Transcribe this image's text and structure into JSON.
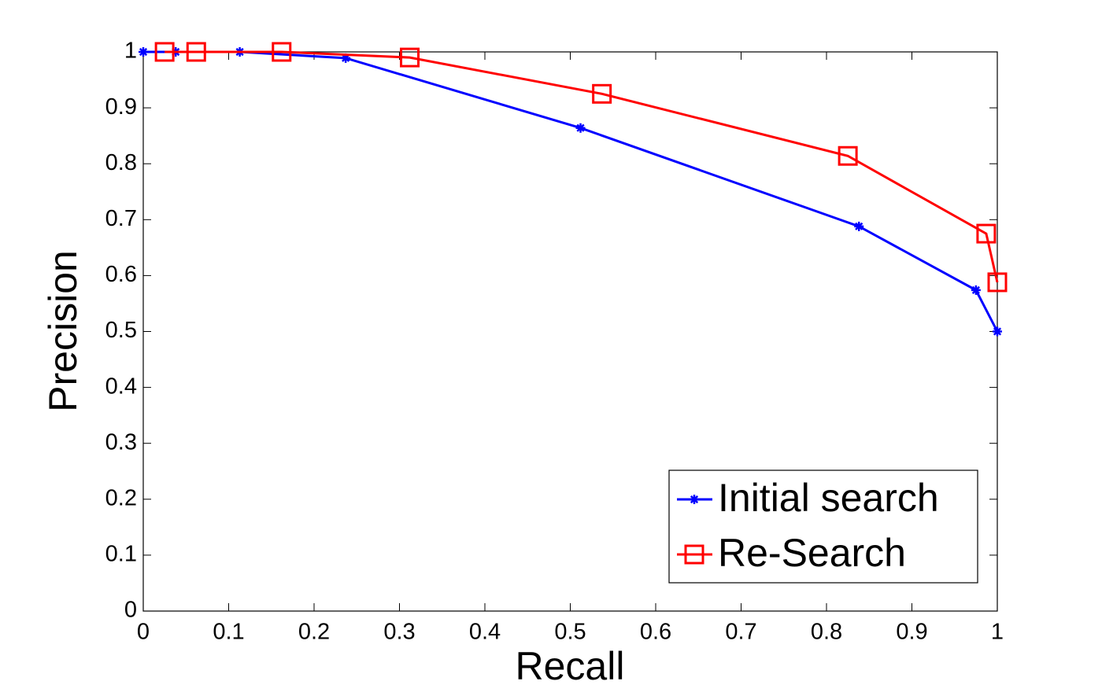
{
  "chart_data": {
    "type": "line",
    "x_label": "Recall",
    "y_label": "Precision",
    "xlim": [
      0,
      1
    ],
    "ylim": [
      0,
      1
    ],
    "xticks": [
      0,
      0.1,
      0.2,
      0.3,
      0.4,
      0.5,
      0.6,
      0.7,
      0.8,
      0.9,
      1
    ],
    "yticks": [
      0,
      0.1,
      0.2,
      0.3,
      0.4,
      0.5,
      0.6,
      0.7,
      0.8,
      0.9,
      1
    ],
    "legend": "lower right",
    "series": [
      {
        "name": "Initial search",
        "color": "#0000ff",
        "marker": "asterisk",
        "x": [
          0,
          0.038,
          0.113,
          0.237,
          0.512,
          0.838,
          0.975,
          1.0
        ],
        "values": [
          1.0,
          1.0,
          1.0,
          0.989,
          0.864,
          0.688,
          0.574,
          0.5
        ]
      },
      {
        "name": "Re-Search",
        "color": "#ff0000",
        "marker": "square",
        "x": [
          0.025,
          0.062,
          0.162,
          0.312,
          0.537,
          0.825,
          0.987,
          1.0
        ],
        "values": [
          1.0,
          1.0,
          1.0,
          0.99,
          0.925,
          0.814,
          0.675,
          0.588
        ]
      }
    ]
  }
}
